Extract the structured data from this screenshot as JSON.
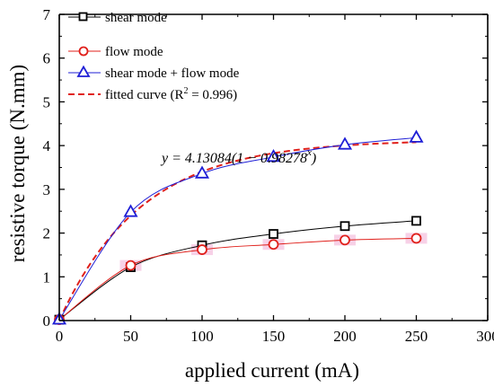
{
  "chart_data": {
    "type": "line",
    "xlabel": "applied current (mA)",
    "ylabel": "resistive torque (N.mm)",
    "xlim": [
      0,
      300
    ],
    "ylim": [
      0,
      7
    ],
    "xticks": [
      "0",
      "50",
      "100",
      "150",
      "200",
      "250",
      "300"
    ],
    "yticks": [
      "0",
      "1",
      "2",
      "3",
      "4",
      "5",
      "6",
      "7"
    ],
    "x": [
      0,
      50,
      100,
      150,
      200,
      250
    ],
    "series": [
      {
        "name": "shear mode",
        "marker": "square",
        "color": "#000000",
        "values": [
          0.02,
          1.22,
          1.72,
          1.98,
          2.16,
          2.28
        ]
      },
      {
        "name": "flow mode",
        "marker": "circle",
        "color": "#e0201b",
        "values": [
          0.02,
          1.26,
          1.62,
          1.74,
          1.84,
          1.88
        ]
      },
      {
        "name": "shear mode + flow mode",
        "marker": "triangle",
        "color": "#1f1fd6",
        "values": [
          0.02,
          2.48,
          3.36,
          3.74,
          4.02,
          4.18
        ]
      },
      {
        "name": "fitted curve (R",
        "name_sup": "2",
        "name_tail": " = 0.996)",
        "style": "dashed",
        "color": "#e0201b",
        "formula": {
          "a": 4.13084,
          "b": 0.98278
        }
      }
    ],
    "annotation": {
      "prefix": "y = 4.13084(1 − 0.98278",
      "sup": "x",
      "suffix": ")"
    },
    "grid": false,
    "legend_position": "top-left"
  }
}
